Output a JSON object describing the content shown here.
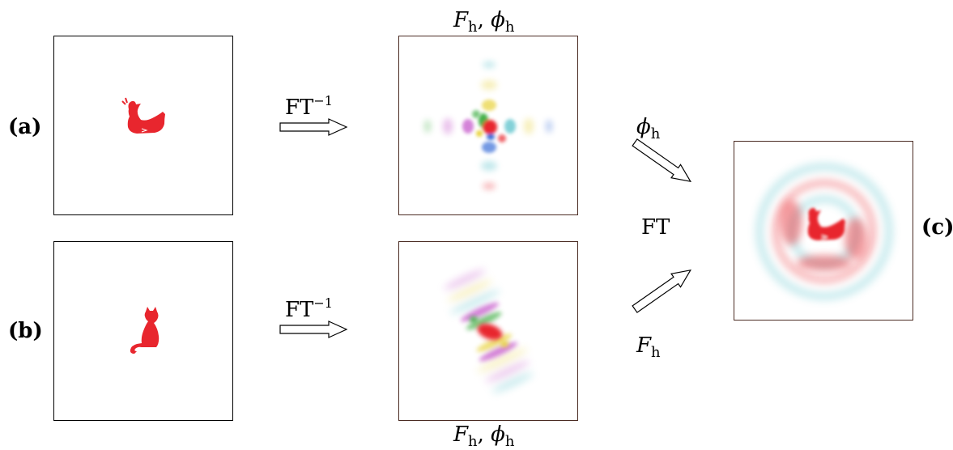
{
  "labels": {
    "a": "(a)",
    "b": "(b)",
    "c": "(c)"
  },
  "ops": {
    "ft_inv_base": "FT",
    "ft_inv_exp": "−1",
    "ft": "FT"
  },
  "symbols": {
    "F": "F",
    "phi": "ϕ",
    "h": "h",
    "comma": ","
  },
  "colors": {
    "object": "#e8262e",
    "phase_cyan": "#4fbec8",
    "phase_green": "#44b04a",
    "phase_yellow": "#e8d23a",
    "phase_blue": "#3a6fd8",
    "phase_magenta": "#c24fc8"
  },
  "icons": {
    "duck": "duck-silhouette",
    "cat": "cat-silhouette",
    "arrow": "hollow-arrow"
  }
}
